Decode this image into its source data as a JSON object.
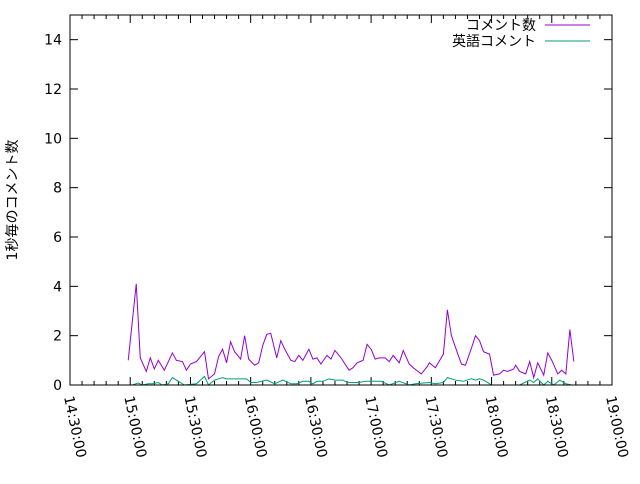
{
  "chart_data": {
    "type": "line",
    "title": "",
    "xlabel": "",
    "ylabel": "1秒毎のコメント数",
    "xlim": [
      "14:30",
      "19:00"
    ],
    "ylim": [
      0,
      15
    ],
    "x_tick_labels": [
      "14:30:00",
      "15:00:00",
      "15:30:00",
      "16:00:00",
      "16:30:00",
      "17:00:00",
      "17:30:00",
      "18:00:00",
      "18:30:00",
      "19:00:00"
    ],
    "y_tick_labels": [
      "0",
      "2",
      "4",
      "6",
      "8",
      "10",
      "12",
      "14"
    ],
    "grid": false,
    "legend_position": "top-right",
    "series": [
      {
        "name": "コメント数",
        "color": "#9400d3",
        "x": [
          "14:59",
          "15:03",
          "15:05",
          "15:08",
          "15:10",
          "15:12",
          "15:14",
          "15:17",
          "15:21",
          "15:23",
          "15:26",
          "15:28",
          "15:30",
          "15:33",
          "15:37",
          "15:39",
          "15:42",
          "15:44",
          "15:46",
          "15:48",
          "15:50",
          "15:52",
          "15:55",
          "15:57",
          "15:59",
          "16:02",
          "16:04",
          "16:06",
          "16:08",
          "16:10",
          "16:13",
          "16:15",
          "16:17",
          "16:20",
          "16:22",
          "16:24",
          "16:26",
          "16:29",
          "16:31",
          "16:33",
          "16:35",
          "16:38",
          "16:40",
          "16:42",
          "16:45",
          "16:49",
          "16:51",
          "16:53",
          "16:56",
          "16:58",
          "17:00",
          "17:02",
          "17:04",
          "17:07",
          "17:09",
          "17:11",
          "17:14",
          "17:16",
          "17:19",
          "17:21",
          "17:25",
          "17:28",
          "17:29",
          "17:32",
          "17:36",
          "17:38",
          "17:40",
          "17:43",
          "17:45",
          "17:47",
          "17:50",
          "17:52",
          "17:54",
          "17:56",
          "17:59",
          "18:01",
          "18:04",
          "18:06",
          "18:08",
          "18:11",
          "18:12",
          "18:14",
          "18:17",
          "18:19",
          "18:21",
          "18:23",
          "18:26",
          "18:28",
          "18:30",
          "18:33",
          "18:35",
          "18:37",
          "18:39",
          "18:41"
        ],
        "y": [
          1.0,
          4.1,
          1.1,
          0.55,
          1.1,
          0.65,
          1.0,
          0.6,
          1.3,
          1.0,
          0.95,
          0.6,
          0.85,
          0.95,
          1.35,
          0.25,
          0.45,
          1.15,
          1.45,
          0.9,
          1.75,
          1.35,
          1.05,
          2.0,
          1.05,
          0.8,
          0.9,
          1.6,
          2.05,
          2.1,
          1.1,
          1.8,
          1.45,
          1.0,
          0.95,
          1.2,
          1.0,
          1.45,
          1.05,
          1.1,
          0.85,
          1.2,
          1.05,
          1.4,
          1.1,
          0.6,
          0.7,
          0.9,
          1.0,
          1.65,
          1.45,
          1.05,
          1.1,
          1.1,
          0.95,
          1.2,
          0.9,
          1.4,
          0.85,
          0.7,
          0.45,
          0.75,
          0.9,
          0.7,
          1.25,
          3.05,
          2.0,
          1.3,
          0.85,
          0.8,
          1.5,
          2.0,
          1.8,
          1.35,
          1.25,
          0.4,
          0.45,
          0.6,
          0.55,
          0.65,
          0.8,
          0.55,
          0.45,
          0.95,
          0.3,
          0.9,
          0.4,
          1.3,
          1.0,
          0.45,
          0.6,
          0.45,
          2.25,
          0.95
        ]
      },
      {
        "name": "英語コメント",
        "color": "#009e73",
        "x": [
          "15:01",
          "15:04",
          "15:06",
          "15:09",
          "15:11",
          "15:14",
          "15:16",
          "15:19",
          "15:21",
          "15:24",
          "15:27",
          "15:33",
          "15:37",
          "15:39",
          "15:42",
          "15:46",
          "15:48",
          "15:56",
          "15:58",
          "16:00",
          "16:03",
          "16:08",
          "16:12",
          "16:16",
          "16:20",
          "16:23",
          "16:26",
          "16:29",
          "16:31",
          "16:33",
          "16:36",
          "16:39",
          "16:42",
          "16:46",
          "16:47",
          "16:49",
          "16:54",
          "16:57",
          "17:02",
          "17:05",
          "17:09",
          "17:14",
          "17:19",
          "17:22",
          "17:29",
          "17:32",
          "17:36",
          "17:38",
          "17:42",
          "17:46",
          "17:50",
          "17:52",
          "17:54",
          "17:56",
          "18:00",
          "18:09",
          "18:14",
          "18:19",
          "18:21",
          "18:23",
          "18:26",
          "18:28",
          "18:31",
          "18:34",
          "18:37",
          "18:40"
        ],
        "y": [
          0,
          0.08,
          0,
          0.05,
          0.05,
          0.1,
          0,
          0.05,
          0.3,
          0.15,
          0,
          0.05,
          0.35,
          0,
          0.2,
          0.3,
          0.25,
          0.25,
          0.25,
          0.1,
          0.1,
          0.2,
          0.05,
          0.2,
          0.05,
          0.05,
          0.15,
          0.15,
          0.05,
          0.15,
          0.15,
          0.25,
          0.2,
          0.2,
          0.15,
          0.1,
          0.1,
          0.15,
          0.15,
          0.15,
          0,
          0.15,
          0,
          0.05,
          0.1,
          0.05,
          0.1,
          0.3,
          0.2,
          0.15,
          0.25,
          0.2,
          0.25,
          0.2,
          0,
          0,
          0,
          0.2,
          0.1,
          0.25,
          0,
          0.15,
          0,
          0.2,
          0.05,
          0
        ]
      }
    ]
  }
}
